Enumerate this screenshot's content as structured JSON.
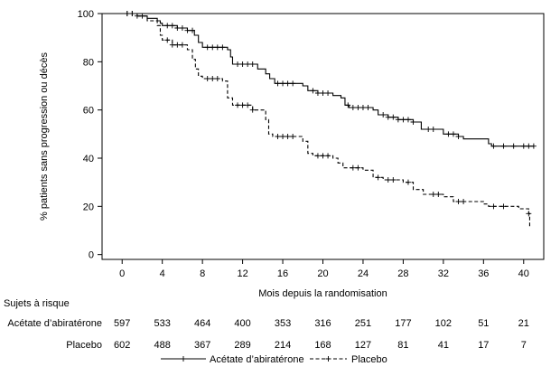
{
  "chart_data": {
    "type": "line",
    "title": "",
    "xlabel": "Mois depuis la randomisation",
    "ylabel": "% patients sans progression ou décès",
    "xlim": [
      -2,
      42
    ],
    "ylim": [
      -2,
      100
    ],
    "x_ticks": [
      0,
      4,
      8,
      12,
      16,
      20,
      24,
      28,
      32,
      36,
      40
    ],
    "y_ticks": [
      0,
      20,
      40,
      60,
      80,
      100
    ],
    "x_tick_labels": [
      "0",
      "4",
      "8",
      "12",
      "16",
      "20",
      "24",
      "28",
      "32",
      "36",
      "40"
    ],
    "y_tick_labels": [
      "0",
      "20",
      "40",
      "60",
      "80",
      "100"
    ],
    "grid": false,
    "legend_position": "bottom",
    "series": [
      {
        "name": "Acétate d’abiratérone",
        "line_style": "solid",
        "color": "#000000",
        "points": [
          [
            0,
            100
          ],
          [
            1.5,
            99
          ],
          [
            2.5,
            98
          ],
          [
            3.5,
            97
          ],
          [
            3.8,
            96
          ],
          [
            4,
            95
          ],
          [
            5.5,
            94
          ],
          [
            6.5,
            93
          ],
          [
            7.2,
            91
          ],
          [
            7.6,
            88
          ],
          [
            8,
            86
          ],
          [
            10.5,
            85
          ],
          [
            10.8,
            82
          ],
          [
            11,
            79
          ],
          [
            13.5,
            77
          ],
          [
            14.3,
            75
          ],
          [
            14.7,
            73
          ],
          [
            15.2,
            71
          ],
          [
            18,
            70
          ],
          [
            18.5,
            68
          ],
          [
            19.5,
            67
          ],
          [
            21,
            66
          ],
          [
            21.8,
            65
          ],
          [
            22.2,
            62
          ],
          [
            22.6,
            61
          ],
          [
            25,
            60
          ],
          [
            25.5,
            58
          ],
          [
            26.5,
            57
          ],
          [
            27.5,
            56
          ],
          [
            29,
            55
          ],
          [
            29.8,
            52
          ],
          [
            32,
            50
          ],
          [
            33.5,
            49
          ],
          [
            34,
            48
          ],
          [
            36.5,
            46
          ],
          [
            36.8,
            45
          ],
          [
            41,
            45
          ]
        ],
        "censor_x": [
          0.5,
          1,
          1.5,
          2,
          4.5,
          5,
          5.5,
          6,
          6.5,
          7,
          8.5,
          9,
          9.5,
          10,
          11.5,
          12,
          12.5,
          13,
          15.5,
          16,
          16.5,
          17,
          19,
          19.5,
          20,
          20.5,
          22.5,
          23,
          23.5,
          24,
          24.5,
          26,
          26.5,
          27,
          27.5,
          28,
          28.5,
          29,
          30.5,
          31,
          32.5,
          33,
          33.5,
          37,
          38,
          39,
          40,
          40.5,
          41
        ]
      },
      {
        "name": "Placebo",
        "line_style": "dashed",
        "color": "#000000",
        "points": [
          [
            0,
            100
          ],
          [
            1.5,
            99
          ],
          [
            2.5,
            97
          ],
          [
            3.5,
            95
          ],
          [
            3.8,
            91
          ],
          [
            4,
            89
          ],
          [
            5,
            87
          ],
          [
            6.5,
            85
          ],
          [
            7,
            81
          ],
          [
            7.3,
            77
          ],
          [
            7.6,
            74
          ],
          [
            8,
            73
          ],
          [
            10,
            72
          ],
          [
            10.5,
            65
          ],
          [
            11,
            62
          ],
          [
            13,
            60
          ],
          [
            14.3,
            56
          ],
          [
            14.6,
            50
          ],
          [
            15,
            49
          ],
          [
            18,
            47
          ],
          [
            18.5,
            42
          ],
          [
            19,
            41
          ],
          [
            21,
            40
          ],
          [
            21.5,
            38
          ],
          [
            22,
            36
          ],
          [
            24,
            35
          ],
          [
            25,
            32
          ],
          [
            26,
            31
          ],
          [
            28,
            30
          ],
          [
            29,
            27
          ],
          [
            30,
            25
          ],
          [
            32,
            24
          ],
          [
            33,
            22
          ],
          [
            36,
            21
          ],
          [
            36.5,
            20
          ],
          [
            39.5,
            19
          ],
          [
            40.5,
            17
          ],
          [
            40.6,
            11
          ]
        ],
        "censor_x": [
          0.5,
          1,
          4.5,
          5,
          5.5,
          6,
          8.5,
          9,
          9.5,
          11.5,
          12,
          12.5,
          13,
          15.5,
          16,
          16.5,
          17,
          19.5,
          20,
          20.5,
          23,
          23.5,
          25.5,
          26.5,
          27,
          28.5,
          31,
          31.5,
          33.5,
          34,
          37,
          38,
          40.5
        ]
      }
    ]
  },
  "risk_table": {
    "title": "Sujets à risque",
    "times": [
      0,
      4,
      8,
      12,
      16,
      20,
      24,
      28,
      32,
      36,
      40
    ],
    "rows": [
      {
        "label": "Acétate d’abiratérone",
        "counts": [
          "597",
          "533",
          "464",
          "400",
          "353",
          "316",
          "251",
          "177",
          "102",
          "51",
          "21"
        ]
      },
      {
        "label": "Placebo",
        "counts": [
          "602",
          "488",
          "367",
          "289",
          "214",
          "168",
          "127",
          "81",
          "41",
          "17",
          "7"
        ]
      }
    ]
  }
}
